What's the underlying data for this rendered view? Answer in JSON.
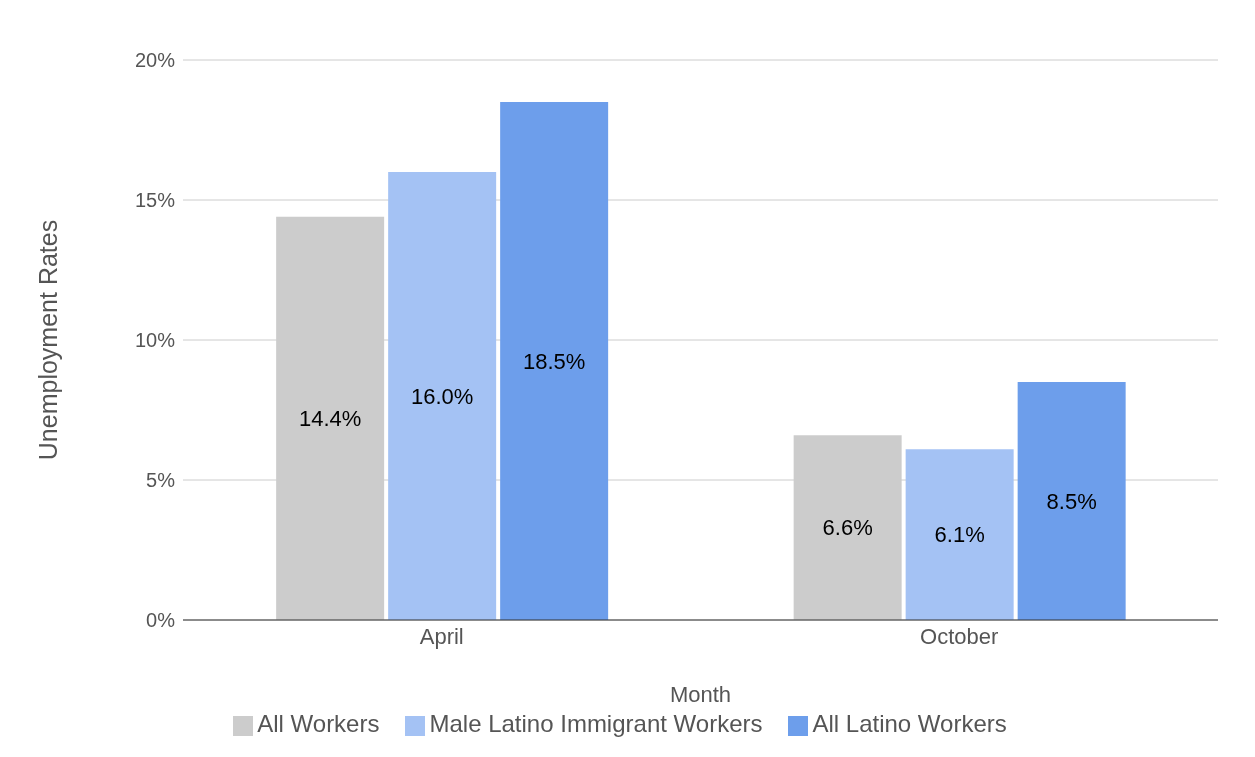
{
  "chart_data": {
    "type": "bar",
    "xlabel": "Month",
    "ylabel": "Unemployment Rates",
    "categories": [
      "April",
      "October"
    ],
    "series": [
      {
        "name": "All Workers",
        "color": "#cccccc",
        "values": [
          14.4,
          6.6
        ],
        "value_labels": [
          "14.4%",
          "6.6%"
        ]
      },
      {
        "name": "Male Latino Immigrant Workers",
        "color": "#a4c2f4",
        "values": [
          16.0,
          6.1
        ],
        "value_labels": [
          "16.0%",
          "6.1%"
        ]
      },
      {
        "name": "All Latino Workers",
        "color": "#6d9eeb",
        "values": [
          18.5,
          8.5
        ],
        "value_labels": [
          "18.5%",
          "8.5%"
        ]
      }
    ],
    "ylim": [
      0,
      20
    ],
    "yticks": [
      {
        "value": 0,
        "label": "0%"
      },
      {
        "value": 5,
        "label": "5%"
      },
      {
        "value": 10,
        "label": "10%"
      },
      {
        "value": 15,
        "label": "15%"
      },
      {
        "value": 20,
        "label": "20%"
      }
    ],
    "grid": "y",
    "legend": "bottom"
  }
}
